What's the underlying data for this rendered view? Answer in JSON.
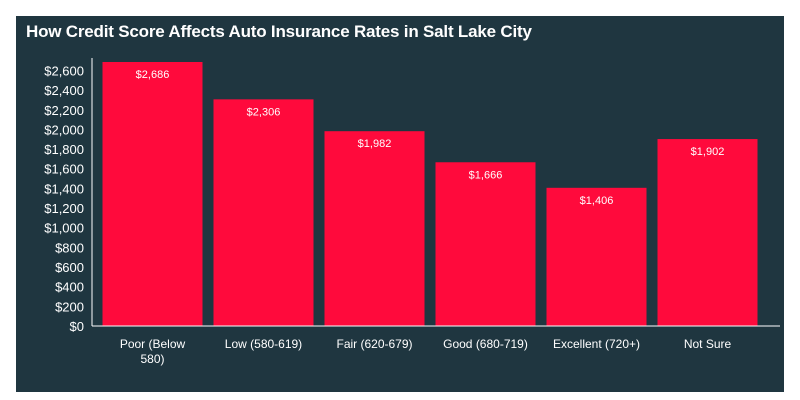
{
  "chart_data": {
    "type": "bar",
    "title": "How Credit Score Affects Auto Insurance Rates in Salt Lake City",
    "categories": [
      "Poor (Below 580)",
      "Low (580-619)",
      "Fair (620-679)",
      "Good (680-719)",
      "Excellent (720+)",
      "Not Sure"
    ],
    "category_label_lines": [
      [
        "Poor (Below",
        "580)"
      ],
      [
        "Low (580-619)"
      ],
      [
        "Fair (620-679)"
      ],
      [
        "Good (680-719)"
      ],
      [
        "Excellent (720+)"
      ],
      [
        "Not Sure"
      ]
    ],
    "values": [
      2686,
      2306,
      1982,
      1666,
      1406,
      1902
    ],
    "value_labels": [
      "$2,686",
      "$2,306",
      "$1,982",
      "$1,666",
      "$1,406",
      "$1,902"
    ],
    "y_ticks": [
      0,
      200,
      400,
      600,
      800,
      1000,
      1200,
      1400,
      1600,
      1800,
      2000,
      2200,
      2400,
      2600
    ],
    "y_tick_labels": [
      "$0",
      "$200",
      "$400",
      "$600",
      "$800",
      "$1,000",
      "$1,200",
      "$1,400",
      "$1,600",
      "$1,800",
      "$2,000",
      "$2,200",
      "$2,400",
      "$2,600"
    ],
    "ylim": [
      0,
      2686
    ],
    "xlabel": "",
    "ylabel": "",
    "grid": false,
    "legend": "none",
    "colors": {
      "background": "#1f3640",
      "bar": "#ff0a3c",
      "text": "#ffffff",
      "axis": "#ffffff"
    }
  }
}
